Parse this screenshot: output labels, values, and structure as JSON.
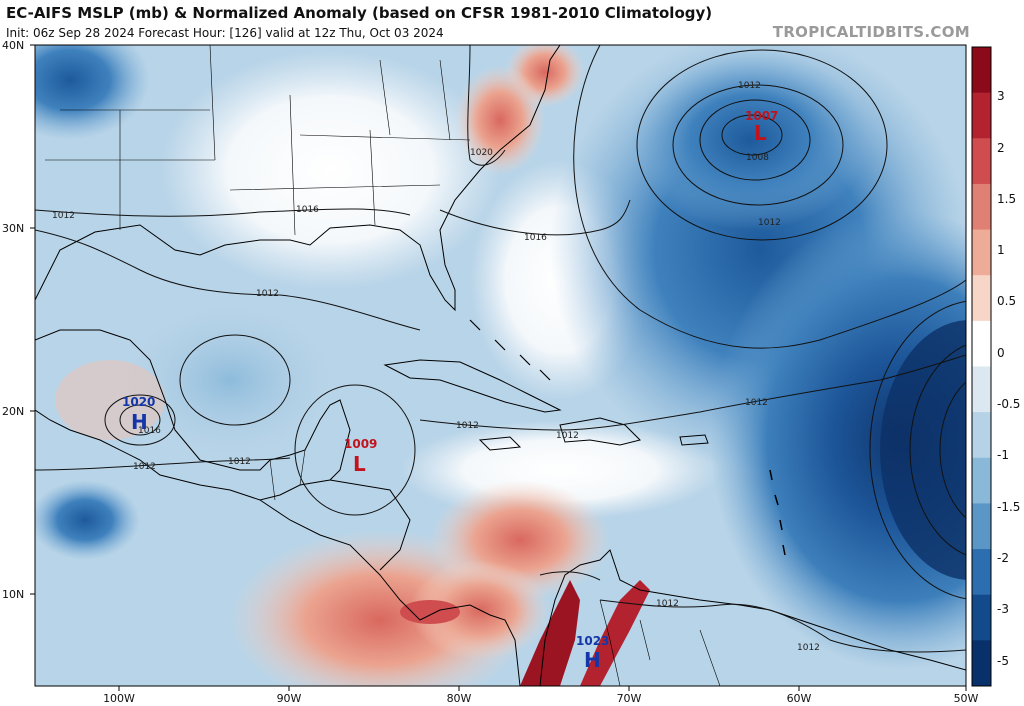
{
  "header": {
    "title": "EC-AIFS MSLP (mb) & Normalized Anomaly (based on CFSR 1981-2010 Climatology)",
    "subtitle": "Init: 06z Sep 28 2024   Forecast Hour: [126]   valid at 12z Thu, Oct 03 2024",
    "brand": "TROPICALTIDBITS.COM"
  },
  "axes": {
    "lat_labels": [
      "40N",
      "30N",
      "20N",
      "10N"
    ],
    "lon_labels": [
      "100W",
      "90W",
      "80W",
      "70W",
      "60W",
      "50W"
    ]
  },
  "colorbar": {
    "labels": [
      "3",
      "2",
      "1.5",
      "1",
      "0.5",
      "0",
      "-0.5",
      "-1",
      "-1.5",
      "-2",
      "-3",
      "-5"
    ],
    "colors": [
      "#8b0a1a",
      "#b3222f",
      "#cf4d4e",
      "#e07f73",
      "#eeab98",
      "#f7d6c8",
      "#ffffff",
      "#dbe8f1",
      "#b5d2e6",
      "#8ab8d8",
      "#5a97c6",
      "#2c6eaf",
      "#124a8c",
      "#08306b"
    ]
  },
  "isobars": {
    "labels": [
      "1012",
      "1016",
      "1020",
      "1008",
      "1012",
      "1016",
      "1012",
      "1012",
      "1012",
      "1012",
      "1012",
      "1012",
      "1012",
      "1016",
      "1012",
      "1012"
    ]
  },
  "pressure_centers": [
    {
      "value": "1007",
      "letter": "L",
      "type": "low"
    },
    {
      "value": "1009",
      "letter": "L",
      "type": "low"
    },
    {
      "value": "1020",
      "letter": "H",
      "type": "high"
    },
    {
      "value": "1023",
      "letter": "H",
      "type": "high"
    }
  ]
}
